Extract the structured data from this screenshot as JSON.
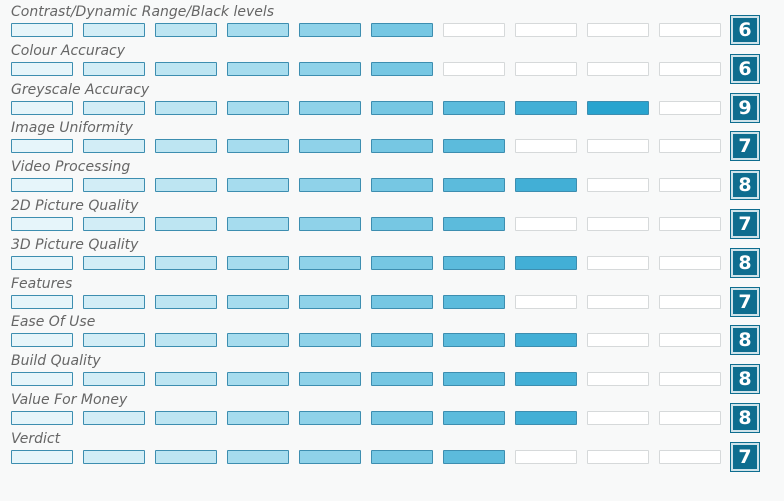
{
  "chart_data": {
    "type": "bar",
    "max_score": 10,
    "segment_colors": [
      "#e6f5fa",
      "#d2edf6",
      "#bde5f2",
      "#a6dcee",
      "#8fd2e9",
      "#76c7e3",
      "#5cbbdc",
      "#42afd6",
      "#28a4cf",
      "#129ac9"
    ],
    "empty_color": "#ffffff",
    "badge_color": "#0e6d8f",
    "categories": [
      "Contrast/Dynamic Range/Black levels",
      "Colour Accuracy",
      "Greyscale Accuracy",
      "Image Uniformity",
      "Video Processing",
      "2D Picture Quality",
      "3D Picture Quality",
      "Features",
      "Ease Of Use",
      "Build Quality",
      "Value For Money",
      "Verdict"
    ],
    "values": [
      6,
      6,
      9,
      7,
      8,
      7,
      8,
      7,
      8,
      8,
      8,
      7
    ]
  }
}
